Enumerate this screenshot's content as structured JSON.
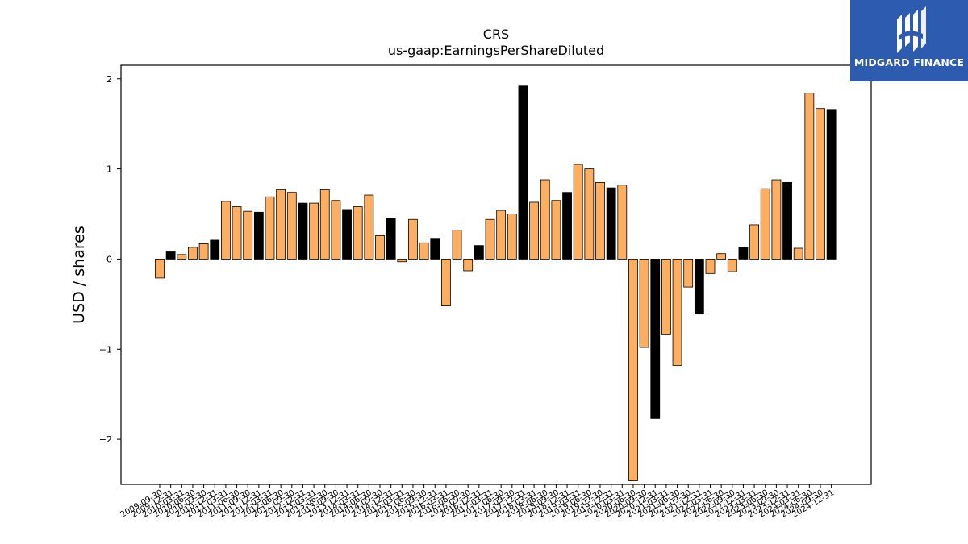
{
  "chart_data": {
    "type": "bar",
    "title": "CRS",
    "subtitle": "us-gaap:EarningsPerShareDiluted",
    "xlabel": "",
    "ylabel": "USD / shares",
    "ylim": [
      -2.5,
      2.15
    ],
    "yticks": [
      {
        "value": -2,
        "label": "−2"
      },
      {
        "value": -1,
        "label": "−1"
      },
      {
        "value": 0,
        "label": "0"
      },
      {
        "value": 1,
        "label": "1"
      },
      {
        "value": 2,
        "label": "2"
      }
    ],
    "colors": {
      "quarter": "#fdae61",
      "annual": "#000000"
    },
    "grid": false,
    "categories": [
      "2009-09-30",
      "2009-12-31",
      "2010-03-31",
      "2010-06-30",
      "2010-09-30",
      "2010-12-31",
      "2011-03-31",
      "2011-06-30",
      "2011-09-30",
      "2011-12-31",
      "2012-03-31",
      "2012-06-30",
      "2012-09-30",
      "2012-12-31",
      "2013-03-31",
      "2013-06-30",
      "2013-09-30",
      "2013-12-31",
      "2014-03-31",
      "2014-06-30",
      "2014-09-30",
      "2014-12-31",
      "2015-03-31",
      "2015-06-30",
      "2015-09-30",
      "2015-12-31",
      "2016-03-31",
      "2016-06-30",
      "2016-09-30",
      "2016-12-31",
      "2017-03-31",
      "2017-06-30",
      "2017-09-30",
      "2017-12-31",
      "2018-03-31",
      "2018-06-30",
      "2018-09-30",
      "2018-12-31",
      "2019-03-31",
      "2019-06-30",
      "2019-09-30",
      "2019-12-31",
      "2020-03-31",
      "2020-06-30",
      "2020-09-30",
      "2020-12-31",
      "2021-03-31",
      "2021-06-30",
      "2021-09-30",
      "2021-12-31",
      "2022-03-31",
      "2022-06-30",
      "2022-09-30",
      "2022-12-31",
      "2023-03-31",
      "2023-06-30",
      "2023-09-30",
      "2023-12-31",
      "2024-03-31",
      "2024-06-30",
      "2024-09-30",
      "2024-12-31"
    ],
    "values": [
      -0.21,
      0.08,
      0.05,
      0.13,
      0.17,
      0.21,
      0.64,
      0.58,
      0.53,
      0.52,
      0.69,
      0.77,
      0.74,
      0.62,
      0.62,
      0.77,
      0.65,
      0.55,
      0.58,
      0.71,
      0.26,
      0.45,
      -0.03,
      0.44,
      0.18,
      0.23,
      -0.52,
      0.32,
      -0.13,
      0.15,
      0.44,
      0.54,
      0.5,
      1.92,
      0.63,
      0.88,
      0.65,
      0.74,
      1.05,
      1.0,
      0.85,
      0.79,
      0.82,
      -2.46,
      -0.98,
      -1.77,
      -0.84,
      -1.18,
      -0.31,
      -0.61,
      -0.16,
      0.06,
      -0.14,
      0.13,
      0.38,
      0.78,
      0.88,
      0.85,
      0.12,
      1.84,
      1.67,
      1.66
    ],
    "kinds": [
      "q",
      "a",
      "q",
      "q",
      "q",
      "a",
      "q",
      "q",
      "q",
      "a",
      "q",
      "q",
      "q",
      "a",
      "q",
      "q",
      "q",
      "a",
      "q",
      "q",
      "q",
      "a",
      "q",
      "q",
      "q",
      "a",
      "q",
      "q",
      "q",
      "a",
      "q",
      "q",
      "q",
      "a",
      "q",
      "q",
      "q",
      "a",
      "q",
      "q",
      "q",
      "a",
      "q",
      "q",
      "q",
      "a",
      "q",
      "q",
      "q",
      "a",
      "q",
      "q",
      "q",
      "a",
      "q",
      "q",
      "q",
      "a",
      "q",
      "q",
      "q",
      "a"
    ]
  },
  "branding": {
    "logo_text": "MIDGARD FINANCE",
    "logo_color": "#2d5bb0"
  }
}
